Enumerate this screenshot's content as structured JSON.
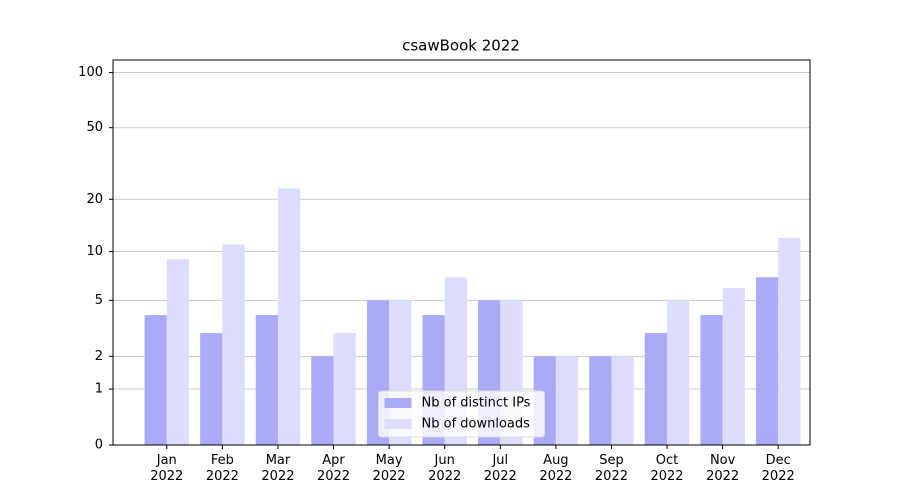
{
  "chart_data": {
    "type": "bar",
    "title": "csawBook 2022",
    "categories": [
      "Jan\n2022",
      "Feb\n2022",
      "Mar\n2022",
      "Apr\n2022",
      "May\n2022",
      "Jun\n2022",
      "Jul\n2022",
      "Aug\n2022",
      "Sep\n2022",
      "Oct\n2022",
      "Nov\n2022",
      "Dec\n2022"
    ],
    "series": [
      {
        "name": "Nb of distinct IPs",
        "color": "#aaaaf9",
        "values": [
          4,
          3,
          4,
          2,
          5,
          4,
          5,
          2,
          2,
          3,
          4,
          7
        ]
      },
      {
        "name": "Nb of downloads",
        "color": "#dcdcfc",
        "values": [
          9,
          11,
          23,
          3,
          5,
          7,
          5,
          2,
          2,
          5,
          6,
          12
        ]
      }
    ],
    "yscale": "log1p",
    "ylim": [
      0,
      117
    ],
    "yticks": [
      0,
      1,
      2,
      5,
      10,
      20,
      50,
      100
    ],
    "grid": true,
    "legend": "lower center"
  }
}
